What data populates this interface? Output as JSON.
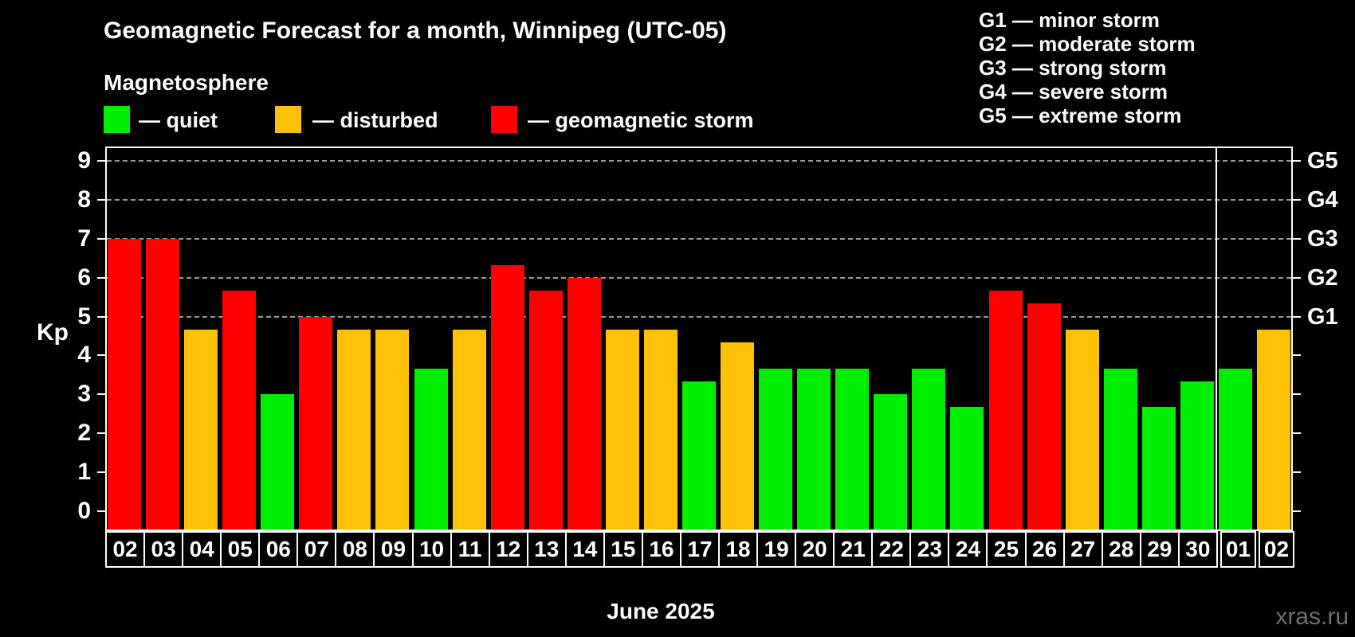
{
  "header": {
    "title": "Geomagnetic Forecast for a month, Winnipeg (UTC-05)",
    "subtitle": "Magnetosphere"
  },
  "legend": {
    "quiet_label": "— quiet",
    "disturbed_label": "— disturbed",
    "storm_label": "— geomagnetic storm"
  },
  "storm_scale_legend": [
    "G1 — minor storm",
    "G2 — moderate storm",
    "G3 — strong storm",
    "G4 — severe storm",
    "G5 — extreme storm"
  ],
  "colors": {
    "quiet": "#00ee00",
    "disturbed": "#ffc107",
    "storm": "#ff0000",
    "background": "#000000",
    "grid": "#9a9a9a",
    "frame": "#ffffff",
    "watermark": "#6e6e6e"
  },
  "axes": {
    "y_label": "Kp",
    "y_ticks": [
      0,
      1,
      2,
      3,
      4,
      5,
      6,
      7,
      8,
      9
    ],
    "right_labels": [
      {
        "kp": 5,
        "label": "G1"
      },
      {
        "kp": 6,
        "label": "G2"
      },
      {
        "kp": 7,
        "label": "G3"
      },
      {
        "kp": 8,
        "label": "G4"
      },
      {
        "kp": 9,
        "label": "G5"
      }
    ],
    "x_caption": "June 2025"
  },
  "watermark": "xras.ru",
  "chart_data": {
    "type": "bar",
    "title": "Geomagnetic Forecast for a month, Winnipeg (UTC-05)",
    "xlabel": "June 2025",
    "ylabel": "Kp",
    "ylim": [
      0,
      9
    ],
    "grid_levels": [
      5,
      6,
      7,
      8,
      9
    ],
    "legend_position": "top-left",
    "categories": [
      "02",
      "03",
      "04",
      "05",
      "06",
      "07",
      "08",
      "09",
      "10",
      "11",
      "12",
      "13",
      "14",
      "15",
      "16",
      "17",
      "18",
      "19",
      "20",
      "21",
      "22",
      "23",
      "24",
      "25",
      "26",
      "27",
      "28",
      "29",
      "30",
      "01",
      "02"
    ],
    "values": [
      7,
      7,
      4.67,
      5.67,
      3,
      5,
      4.67,
      4.67,
      3.67,
      4.67,
      6.33,
      5.67,
      6,
      4.67,
      4.67,
      3.33,
      4.33,
      3.67,
      3.67,
      3.67,
      3,
      3.67,
      2.67,
      5.67,
      5.33,
      4.67,
      3.67,
      2.67,
      3.33,
      3.67,
      4.67
    ],
    "status": [
      "storm",
      "storm",
      "disturbed",
      "storm",
      "quiet",
      "storm",
      "disturbed",
      "disturbed",
      "quiet",
      "disturbed",
      "storm",
      "storm",
      "storm",
      "disturbed",
      "disturbed",
      "quiet",
      "disturbed",
      "quiet",
      "quiet",
      "quiet",
      "quiet",
      "quiet",
      "quiet",
      "storm",
      "storm",
      "disturbed",
      "quiet",
      "quiet",
      "quiet",
      "quiet",
      "disturbed"
    ],
    "month_separator_after_index": 28
  }
}
